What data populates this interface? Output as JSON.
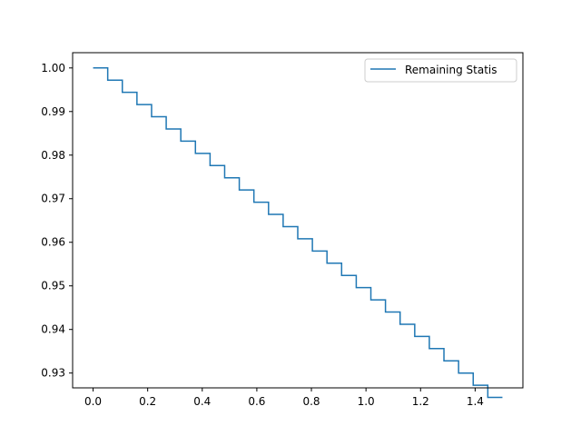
{
  "chart_data": {
    "type": "line",
    "line_style": "step",
    "title": "",
    "xlabel": "",
    "ylabel": "",
    "xlim": [
      -0.075,
      1.575
    ],
    "ylim": [
      0.9266,
      1.0035
    ],
    "x_ticks": [
      0.0,
      0.2,
      0.4,
      0.6,
      0.8,
      1.0,
      1.2,
      1.4
    ],
    "x_tick_labels": [
      "0.0",
      "0.2",
      "0.4",
      "0.6",
      "0.8",
      "1.0",
      "1.2",
      "1.4"
    ],
    "y_ticks": [
      0.93,
      0.94,
      0.95,
      0.96,
      0.97,
      0.98,
      0.99,
      1.0
    ],
    "y_tick_labels": [
      "0.93",
      "0.94",
      "0.95",
      "0.96",
      "0.97",
      "0.98",
      "0.99",
      "1.00"
    ],
    "grid": false,
    "legend_position": "top-right",
    "series": [
      {
        "name": "Remaining Statis",
        "color": "#1f77b4",
        "x": [
          0.0,
          0.0536,
          0.1071,
          0.1607,
          0.2143,
          0.2679,
          0.3214,
          0.375,
          0.4286,
          0.4821,
          0.5357,
          0.5893,
          0.6429,
          0.6964,
          0.75,
          0.8036,
          0.8571,
          0.9107,
          0.9643,
          1.0179,
          1.0714,
          1.125,
          1.1786,
          1.2321,
          1.2857,
          1.3393,
          1.3929,
          1.4464,
          1.5
        ],
        "y": [
          1.0,
          0.9972,
          0.9944,
          0.9916,
          0.9888,
          0.986,
          0.9832,
          0.9804,
          0.9776,
          0.9748,
          0.972,
          0.9692,
          0.9664,
          0.9636,
          0.9608,
          0.958,
          0.9552,
          0.9524,
          0.9496,
          0.9468,
          0.944,
          0.9412,
          0.9384,
          0.9356,
          0.9328,
          0.93,
          0.9272,
          0.9244,
          0.9244
        ]
      }
    ]
  }
}
